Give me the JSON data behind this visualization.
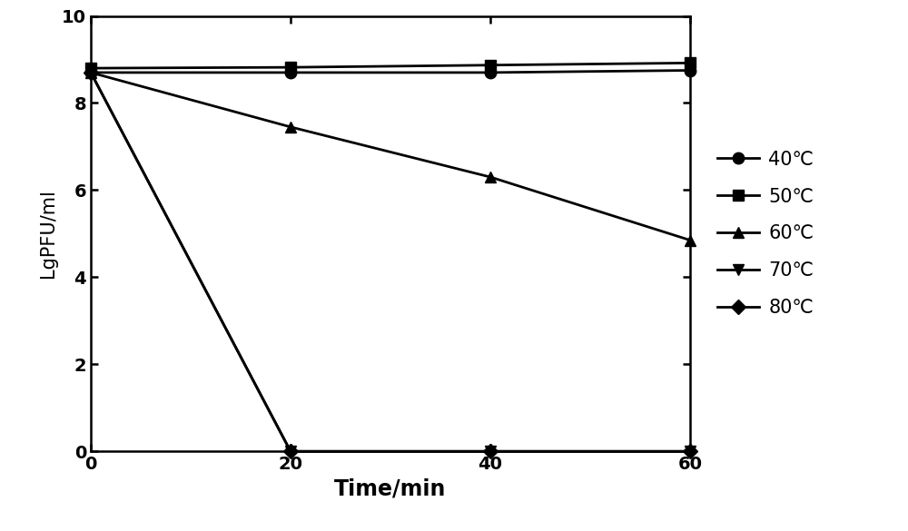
{
  "x": [
    0,
    20,
    40,
    60
  ],
  "series": [
    {
      "label": "40℃",
      "values": [
        8.7,
        8.7,
        8.7,
        8.75
      ],
      "marker": "o",
      "markersize": 9
    },
    {
      "label": "50℃",
      "values": [
        8.8,
        8.82,
        8.87,
        8.92
      ],
      "marker": "s",
      "markersize": 9
    },
    {
      "label": "60℃",
      "values": [
        8.7,
        7.45,
        6.3,
        4.85
      ],
      "marker": "^",
      "markersize": 9
    },
    {
      "label": "70℃",
      "values": [
        8.7,
        0.0,
        0.0,
        0.0
      ],
      "marker": "v",
      "markersize": 9
    },
    {
      "label": "80℃",
      "values": [
        8.7,
        0.0,
        0.0,
        0.0
      ],
      "marker": "D",
      "markersize": 8
    }
  ],
  "line_color": "#000000",
  "xlabel": "Time/min",
  "ylabel": "LgPFU/ml",
  "xlim": [
    0,
    60
  ],
  "ylim": [
    0,
    10
  ],
  "yticks": [
    0,
    2,
    4,
    6,
    8,
    10
  ],
  "xticks": [
    0,
    20,
    40,
    60
  ],
  "linewidth": 2.0,
  "xlabel_fontsize": 17,
  "ylabel_fontsize": 15,
  "tick_fontsize": 14,
  "legend_fontsize": 15,
  "background_color": "#ffffff",
  "fig_width": 10.0,
  "fig_height": 5.85
}
